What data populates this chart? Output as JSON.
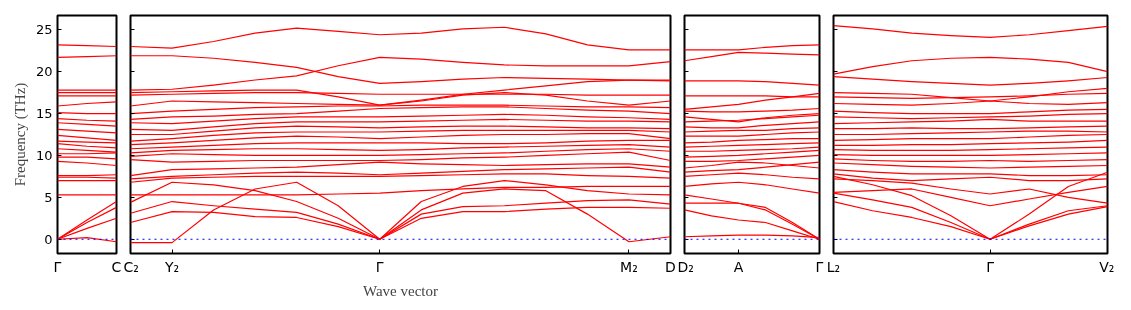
{
  "chart_data": [
    {
      "type": "line",
      "ylabel": "Frequency (THz)",
      "ylim": [
        -1.7,
        26.7
      ],
      "yticks": [
        0,
        5,
        10,
        15,
        20,
        25
      ],
      "categories": [
        "Γ",
        null,
        "C"
      ],
      "ref_lines": [
        {
          "axis": "y",
          "value": 0,
          "color": "#0000ff",
          "line_style": "dotted"
        }
      ],
      "series": [
        {
          "color": "#ff0000",
          "values": [
            0,
            0.2,
            -0.3
          ]
        },
        {
          "color": "#ff0000",
          "values": [
            0,
            1.3,
            2.5
          ]
        },
        {
          "color": "#ff0000",
          "values": [
            0,
            2.0,
            3.8
          ]
        },
        {
          "color": "#ff0000",
          "values": [
            0,
            2.3,
            4.5
          ]
        },
        {
          "color": "#ff0000",
          "values": [
            5.3,
            5.3,
            5.3
          ]
        },
        {
          "color": "#ff0000",
          "values": [
            7.0,
            7.0,
            7.0
          ]
        },
        {
          "color": "#ff0000",
          "values": [
            7.4,
            7.4,
            7.3
          ]
        },
        {
          "color": "#ff0000",
          "values": [
            7.6,
            7.6,
            7.7
          ]
        },
        {
          "color": "#ff0000",
          "values": [
            9.3,
            9.1,
            8.8
          ]
        },
        {
          "color": "#ff0000",
          "values": [
            9.8,
            9.8,
            9.6
          ]
        },
        {
          "color": "#ff0000",
          "values": [
            10.2,
            10.2,
            10.3
          ]
        },
        {
          "color": "#ff0000",
          "values": [
            10.8,
            10.6,
            10.4
          ]
        },
        {
          "color": "#ff0000",
          "values": [
            11.4,
            11.1,
            10.9
          ]
        },
        {
          "color": "#ff0000",
          "values": [
            11.7,
            11.6,
            11.5
          ]
        },
        {
          "color": "#ff0000",
          "values": [
            12.4,
            12.1,
            11.8
          ]
        },
        {
          "color": "#ff0000",
          "values": [
            13.1,
            12.9,
            12.7
          ]
        },
        {
          "color": "#ff0000",
          "values": [
            13.9,
            13.7,
            13.5
          ]
        },
        {
          "color": "#ff0000",
          "values": [
            14.4,
            14.2,
            14.1
          ]
        },
        {
          "color": "#ff0000",
          "values": [
            15.1,
            15.0,
            15.0
          ]
        },
        {
          "color": "#ff0000",
          "values": [
            15.9,
            16.2,
            16.4
          ]
        },
        {
          "color": "#ff0000",
          "values": [
            17.1,
            17.1,
            17.1
          ]
        },
        {
          "color": "#ff0000",
          "values": [
            17.5,
            17.5,
            17.5
          ]
        },
        {
          "color": "#ff0000",
          "values": [
            17.8,
            17.8,
            17.8
          ]
        },
        {
          "color": "#ff0000",
          "values": [
            21.7,
            21.8,
            21.9
          ]
        },
        {
          "color": "#ff0000",
          "values": [
            23.2,
            23.1,
            23.0
          ]
        }
      ]
    },
    {
      "type": "line",
      "xlabel": "Wave vector",
      "ylim": [
        -1.7,
        26.7
      ],
      "yticks": [
        0,
        5,
        10,
        15,
        20,
        25
      ],
      "tick_labels": "x",
      "categories": [
        "C₂",
        "Y₂",
        null,
        null,
        null,
        null,
        "Γ",
        null,
        null,
        null,
        null,
        null,
        "M₂",
        "D"
      ],
      "ref_lines": [
        {
          "axis": "y",
          "value": 0,
          "color": "#0000ff",
          "line_style": "dotted"
        }
      ],
      "series": [
        {
          "color": "#ff0000",
          "values": [
            -0.4,
            -0.4,
            3.5,
            6.0,
            6.8,
            4.0,
            0,
            3.5,
            5.5,
            6.0,
            5.8,
            3.0,
            -0.3,
            0.3
          ]
        },
        {
          "color": "#ff0000",
          "values": [
            2.0,
            3.3,
            3.2,
            2.7,
            2.6,
            1.5,
            0,
            2.5,
            3.3,
            3.3,
            3.6,
            3.8,
            3.8,
            3.7
          ]
        },
        {
          "color": "#ff0000",
          "values": [
            3.1,
            4.5,
            4.0,
            3.6,
            3.2,
            1.8,
            0,
            3.0,
            3.9,
            4.0,
            4.3,
            4.6,
            4.7,
            4.2
          ]
        },
        {
          "color": "#ff0000",
          "values": [
            4.4,
            6.8,
            6.5,
            5.8,
            4.5,
            2.5,
            0,
            4.5,
            6.3,
            7.0,
            6.5,
            5.8,
            5.4,
            5.3
          ]
        },
        {
          "color": "#ff0000",
          "values": [
            5.3,
            5.3,
            5.3,
            5.3,
            5.3,
            5.4,
            5.5,
            5.8,
            6.0,
            6.2,
            6.2,
            6.3,
            6.3,
            6.3
          ]
        },
        {
          "color": "#ff0000",
          "values": [
            6.8,
            7.3,
            7.4,
            7.5,
            7.5,
            7.5,
            7.5,
            7.6,
            7.7,
            7.8,
            7.8,
            7.6,
            7.5,
            7.3
          ]
        },
        {
          "color": "#ff0000",
          "values": [
            7.2,
            7.5,
            7.7,
            7.9,
            8.0,
            7.9,
            7.7,
            7.9,
            8.1,
            8.3,
            8.4,
            8.5,
            8.6,
            8.0
          ]
        },
        {
          "color": "#ff0000",
          "values": [
            7.6,
            8.3,
            8.4,
            8.5,
            8.6,
            8.9,
            9.2,
            9.0,
            8.9,
            8.8,
            8.9,
            9.0,
            9.0,
            8.6
          ]
        },
        {
          "color": "#ff0000",
          "values": [
            9.5,
            9.2,
            9.3,
            9.4,
            9.4,
            9.4,
            9.4,
            9.5,
            9.7,
            9.8,
            10.0,
            10.2,
            10.4,
            9.4
          ]
        },
        {
          "color": "#ff0000",
          "values": [
            9.9,
            10.2,
            10.1,
            10.0,
            10.0,
            10.0,
            10.0,
            10.1,
            10.2,
            10.3,
            10.5,
            10.7,
            10.8,
            10.5
          ]
        },
        {
          "color": "#ff0000",
          "values": [
            10.3,
            10.6,
            10.7,
            10.8,
            10.8,
            10.7,
            10.6,
            10.7,
            10.9,
            11.0,
            11.1,
            11.2,
            11.3,
            11.0
          ]
        },
        {
          "color": "#ff0000",
          "values": [
            10.8,
            11.0,
            11.2,
            11.4,
            11.5,
            11.5,
            11.5,
            11.5,
            11.4,
            11.4,
            11.5,
            11.7,
            11.8,
            11.8
          ]
        },
        {
          "color": "#ff0000",
          "values": [
            11.3,
            11.5,
            11.8,
            12.1,
            12.3,
            12.2,
            12.0,
            12.2,
            12.4,
            12.5,
            12.5,
            12.6,
            12.6,
            12.0
          ]
        },
        {
          "color": "#ff0000",
          "values": [
            11.7,
            12.0,
            12.4,
            12.7,
            12.8,
            12.8,
            12.8,
            12.9,
            13.0,
            13.0,
            13.0,
            13.0,
            13.0,
            12.8
          ]
        },
        {
          "color": "#ff0000",
          "values": [
            12.5,
            12.5,
            12.9,
            13.3,
            13.5,
            13.4,
            13.3,
            13.4,
            13.5,
            13.5,
            13.4,
            13.3,
            13.3,
            13.2
          ]
        },
        {
          "color": "#ff0000",
          "values": [
            13.1,
            13.0,
            13.4,
            13.8,
            14.0,
            14.0,
            14.0,
            14.1,
            14.2,
            14.3,
            14.2,
            14.1,
            14.1,
            14.0
          ]
        },
        {
          "color": "#ff0000",
          "values": [
            13.9,
            13.8,
            14.1,
            14.4,
            14.6,
            14.6,
            14.6,
            14.7,
            14.8,
            14.9,
            14.8,
            14.6,
            14.5,
            14.3
          ]
        },
        {
          "color": "#ff0000",
          "values": [
            14.3,
            14.6,
            14.7,
            14.9,
            15.0,
            15.3,
            15.6,
            15.7,
            15.8,
            15.8,
            15.6,
            15.4,
            15.3,
            15.0
          ]
        },
        {
          "color": "#ff0000",
          "values": [
            15.0,
            15.3,
            15.5,
            15.7,
            15.8,
            15.9,
            15.9,
            16.0,
            16.0,
            16.0,
            15.9,
            15.8,
            15.8,
            15.7
          ]
        },
        {
          "color": "#ff0000",
          "values": [
            15.9,
            16.5,
            16.4,
            16.3,
            16.2,
            16.1,
            16.0,
            16.5,
            17.2,
            17.5,
            17.2,
            16.5,
            16.0,
            16.5
          ]
        },
        {
          "color": "#ff0000",
          "values": [
            17.2,
            17.3,
            17.4,
            17.5,
            17.5,
            17.4,
            17.3,
            17.3,
            17.3,
            17.3,
            17.3,
            17.2,
            17.2,
            17.2
          ]
        },
        {
          "color": "#ff0000",
          "values": [
            17.5,
            17.6,
            17.7,
            17.8,
            17.8,
            17.0,
            16.0,
            16.6,
            17.3,
            17.8,
            18.3,
            18.8,
            19.0,
            19.0
          ]
        },
        {
          "color": "#ff0000",
          "values": [
            17.8,
            17.9,
            18.4,
            19.0,
            19.5,
            20.7,
            21.7,
            21.5,
            21.1,
            20.8,
            20.7,
            20.7,
            20.7,
            21.2
          ]
        },
        {
          "color": "#ff0000",
          "values": [
            21.9,
            21.9,
            21.6,
            21.1,
            20.5,
            19.4,
            18.6,
            18.8,
            19.1,
            19.3,
            19.2,
            19.1,
            19.0,
            18.9
          ]
        },
        {
          "color": "#ff0000",
          "values": [
            23.0,
            22.8,
            23.6,
            24.6,
            25.2,
            24.8,
            24.4,
            24.6,
            25.1,
            25.3,
            24.5,
            23.2,
            22.6,
            22.6
          ]
        }
      ]
    },
    {
      "type": "line",
      "ylim": [
        -1.7,
        26.7
      ],
      "yticks": [
        0,
        5,
        10,
        15,
        20,
        25
      ],
      "tick_labels": "x",
      "categories": [
        "D₂",
        null,
        "A",
        null,
        null,
        "Γ"
      ],
      "ref_lines": [
        {
          "axis": "y",
          "value": 0,
          "color": "#0000ff",
          "line_style": "dotted"
        }
      ],
      "series": [
        {
          "color": "#ff0000",
          "values": [
            0.3,
            0.4,
            0.5,
            0.5,
            0.4,
            0.2
          ]
        },
        {
          "color": "#ff0000",
          "values": [
            3.5,
            2.8,
            2.3,
            2.0,
            1.0,
            0
          ]
        },
        {
          "color": "#ff0000",
          "values": [
            4.3,
            4.3,
            4.3,
            3.5,
            1.8,
            0
          ]
        },
        {
          "color": "#ff0000",
          "values": [
            5.3,
            4.8,
            4.3,
            3.8,
            2.0,
            0
          ]
        },
        {
          "color": "#ff0000",
          "values": [
            6.3,
            6.6,
            6.8,
            6.5,
            6.0,
            5.5
          ]
        },
        {
          "color": "#ff0000",
          "values": [
            7.5,
            7.7,
            7.9,
            7.7,
            7.4,
            7.2
          ]
        },
        {
          "color": "#ff0000",
          "values": [
            8.0,
            8.2,
            8.3,
            8.6,
            8.9,
            9.2
          ]
        },
        {
          "color": "#ff0000",
          "values": [
            8.5,
            8.8,
            9.2,
            9.1,
            8.8,
            8.5
          ]
        },
        {
          "color": "#ff0000",
          "values": [
            9.3,
            9.3,
            9.4,
            9.6,
            9.8,
            10.0
          ]
        },
        {
          "color": "#ff0000",
          "values": [
            9.8,
            9.9,
            10.0,
            10.2,
            10.4,
            10.6
          ]
        },
        {
          "color": "#ff0000",
          "values": [
            10.5,
            10.5,
            10.6,
            10.7,
            10.8,
            11.0
          ]
        },
        {
          "color": "#ff0000",
          "values": [
            11.0,
            11.1,
            11.2,
            11.3,
            11.4,
            11.5
          ]
        },
        {
          "color": "#ff0000",
          "values": [
            11.5,
            11.6,
            11.8,
            11.9,
            12.0,
            12.0
          ]
        },
        {
          "color": "#ff0000",
          "values": [
            12.3,
            12.3,
            12.3,
            12.5,
            12.7,
            12.8
          ]
        },
        {
          "color": "#ff0000",
          "values": [
            12.8,
            12.9,
            13.0,
            13.0,
            13.2,
            13.3
          ]
        },
        {
          "color": "#ff0000",
          "values": [
            13.4,
            13.3,
            13.3,
            13.6,
            13.8,
            14.0
          ]
        },
        {
          "color": "#ff0000",
          "values": [
            14.0,
            14.1,
            14.2,
            14.4,
            14.6,
            14.8
          ]
        },
        {
          "color": "#ff0000",
          "values": [
            14.6,
            14.3,
            14.0,
            14.5,
            14.8,
            15.0
          ]
        },
        {
          "color": "#ff0000",
          "values": [
            15.3,
            15.2,
            15.2,
            15.3,
            15.4,
            15.6
          ]
        },
        {
          "color": "#ff0000",
          "values": [
            15.5,
            15.8,
            16.1,
            16.6,
            17.0,
            17.4
          ]
        },
        {
          "color": "#ff0000",
          "values": [
            17.1,
            17.1,
            17.1,
            17.1,
            17.0,
            17.0
          ]
        },
        {
          "color": "#ff0000",
          "values": [
            18.9,
            18.9,
            18.9,
            18.8,
            18.6,
            18.4
          ]
        },
        {
          "color": "#ff0000",
          "values": [
            21.3,
            21.8,
            22.3,
            22.2,
            22.1,
            22.0
          ]
        },
        {
          "color": "#ff0000",
          "values": [
            22.6,
            22.6,
            22.6,
            22.9,
            23.1,
            23.2
          ]
        }
      ]
    },
    {
      "type": "line",
      "ylim": [
        -1.7,
        26.7
      ],
      "yticks": [
        0,
        5,
        10,
        15,
        20,
        25
      ],
      "tick_labels": "x",
      "categories": [
        "L₂",
        null,
        null,
        null,
        "Γ",
        null,
        null,
        "V₂"
      ],
      "ref_lines": [
        {
          "axis": "y",
          "value": 0,
          "color": "#0000ff",
          "line_style": "dotted"
        }
      ],
      "series": [
        {
          "color": "#ff0000",
          "values": [
            4.5,
            3.4,
            2.6,
            1.5,
            0,
            1.6,
            3.0,
            3.9
          ]
        },
        {
          "color": "#ff0000",
          "values": [
            5.5,
            4.7,
            3.8,
            2.0,
            0,
            1.8,
            3.4,
            4.0
          ]
        },
        {
          "color": "#ff0000",
          "values": [
            7.5,
            6.5,
            5.2,
            2.8,
            0,
            3.0,
            6.3,
            8.0
          ]
        },
        {
          "color": "#ff0000",
          "values": [
            5.6,
            5.8,
            6.0,
            5.0,
            4.0,
            4.8,
            5.6,
            6.3
          ]
        },
        {
          "color": "#ff0000",
          "values": [
            7.2,
            7.0,
            6.7,
            6.0,
            5.4,
            6.0,
            5.0,
            4.3
          ]
        },
        {
          "color": "#ff0000",
          "values": [
            7.8,
            7.3,
            7.0,
            7.2,
            7.4,
            7.0,
            7.0,
            7.2
          ]
        },
        {
          "color": "#ff0000",
          "values": [
            8.3,
            8.0,
            7.8,
            7.8,
            7.8,
            7.6,
            7.6,
            7.7
          ]
        },
        {
          "color": "#ff0000",
          "values": [
            9.1,
            8.9,
            8.7,
            8.6,
            8.5,
            8.6,
            8.7,
            8.8
          ]
        },
        {
          "color": "#ff0000",
          "values": [
            9.6,
            9.4,
            9.3,
            9.3,
            9.4,
            9.3,
            9.4,
            9.5
          ]
        },
        {
          "color": "#ff0000",
          "values": [
            10.1,
            10.0,
            10.0,
            10.0,
            10.0,
            10.1,
            10.2,
            10.3
          ]
        },
        {
          "color": "#ff0000",
          "values": [
            10.7,
            10.6,
            10.6,
            10.6,
            10.7,
            10.8,
            10.9,
            11.0
          ]
        },
        {
          "color": "#ff0000",
          "values": [
            11.2,
            11.2,
            11.3,
            11.3,
            11.4,
            11.5,
            11.6,
            11.8
          ]
        },
        {
          "color": "#ff0000",
          "values": [
            11.8,
            11.9,
            12.0,
            12.0,
            12.0,
            12.2,
            12.4,
            12.5
          ]
        },
        {
          "color": "#ff0000",
          "values": [
            12.5,
            12.5,
            12.6,
            12.7,
            12.8,
            12.9,
            12.9,
            12.8
          ]
        },
        {
          "color": "#ff0000",
          "values": [
            13.2,
            13.2,
            13.3,
            13.2,
            13.2,
            13.3,
            13.4,
            13.5
          ]
        },
        {
          "color": "#ff0000",
          "values": [
            13.8,
            13.9,
            14.0,
            14.1,
            14.3,
            14.1,
            14.1,
            14.1
          ]
        },
        {
          "color": "#ff0000",
          "values": [
            14.6,
            14.5,
            14.4,
            14.5,
            14.6,
            14.7,
            14.9,
            15.0
          ]
        },
        {
          "color": "#ff0000",
          "values": [
            15.3,
            15.1,
            15.0,
            15.0,
            15.0,
            15.2,
            15.4,
            15.5
          ]
        },
        {
          "color": "#ff0000",
          "values": [
            16.2,
            16.1,
            16.0,
            16.2,
            16.5,
            16.2,
            16.1,
            16.3
          ]
        },
        {
          "color": "#ff0000",
          "values": [
            17.0,
            16.9,
            16.8,
            16.9,
            17.0,
            17.1,
            17.3,
            17.4
          ]
        },
        {
          "color": "#ff0000",
          "values": [
            17.5,
            17.4,
            17.3,
            16.9,
            16.5,
            17.0,
            17.6,
            18.0
          ]
        },
        {
          "color": "#ff0000",
          "values": [
            19.4,
            19.1,
            18.8,
            18.6,
            18.4,
            18.6,
            18.9,
            19.3
          ]
        },
        {
          "color": "#ff0000",
          "values": [
            19.7,
            20.6,
            21.3,
            21.6,
            21.7,
            21.5,
            21.1,
            20.0
          ]
        },
        {
          "color": "#ff0000",
          "values": [
            25.5,
            25.1,
            24.6,
            24.3,
            24.1,
            24.4,
            24.9,
            25.4
          ]
        }
      ]
    }
  ]
}
